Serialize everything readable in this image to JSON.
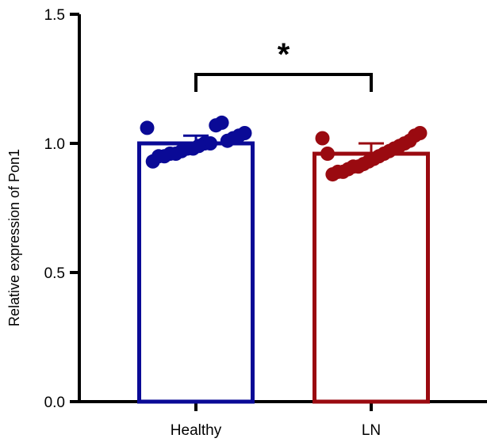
{
  "chart_data": {
    "type": "bar",
    "title": "",
    "xlabel": "",
    "ylabel": "Relative expression of Pon1",
    "ylim": [
      0,
      1.5
    ],
    "yticks": [
      "0.0",
      "0.5",
      "1.0",
      "1.5"
    ],
    "yticks_values": [
      0,
      0.5,
      1.0,
      1.5
    ],
    "grid": false,
    "categories": [
      "Healthy",
      "LN"
    ],
    "values": [
      1.0,
      0.96
    ],
    "errors": [
      0.03,
      0.04
    ],
    "colors": [
      "#0a0a96",
      "#9a0a10"
    ],
    "points": [
      [
        1.06,
        1.04,
        1.03,
        1.02,
        1.01,
        1.08,
        1.07,
        1.0,
        1.0,
        0.99,
        0.98,
        0.98,
        0.97,
        0.96,
        0.96,
        0.95,
        0.95,
        0.93
      ],
      [
        1.02,
        1.04,
        1.03,
        1.01,
        1.0,
        0.99,
        0.98,
        0.97,
        0.96,
        0.95,
        0.94,
        0.93,
        0.92,
        0.91,
        0.91,
        0.9,
        0.89,
        0.89,
        0.88,
        0.96
      ]
    ],
    "significance": {
      "label": "*",
      "between": [
        "Healthy",
        "LN"
      ]
    }
  }
}
